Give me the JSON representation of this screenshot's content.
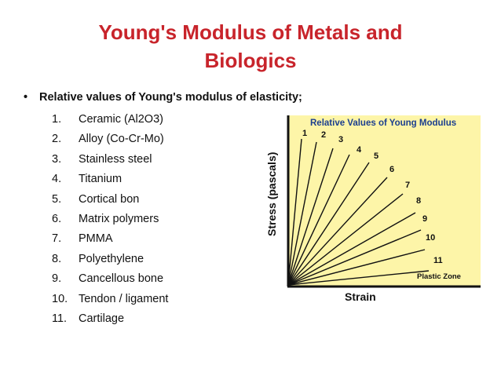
{
  "slide": {
    "title_line1": "Young's Modulus of Metals and",
    "title_line2": "Biologics",
    "bullet_symbol": "•",
    "bullet_text": "Relative values of Young's modulus of elasticity;",
    "items": [
      {
        "num": "1.",
        "label": "Ceramic (Al2O3)"
      },
      {
        "num": "2.",
        "label": "Alloy (Co-Cr-Mo)"
      },
      {
        "num": "3.",
        "label": "Stainless steel"
      },
      {
        "num": "4.",
        "label": "Titanium"
      },
      {
        "num": "5.",
        "label": "Cortical bon"
      },
      {
        "num": "6.",
        "label": "Matrix polymers"
      },
      {
        "num": "7.",
        "label": "PMMA"
      },
      {
        "num": "8.",
        "label": "Polyethylene"
      },
      {
        "num": "9.",
        "label": "Cancellous bone"
      },
      {
        "num": "10.",
        "label": "Tendon / ligament"
      },
      {
        "num": "11.",
        "label": "Cartilage"
      }
    ]
  },
  "figure": {
    "title": "Relative Values of Young Modulus",
    "xlabel": "Strain",
    "ylabel": "Stress (pascals)",
    "zone_label": "Plastic Zone",
    "line_labels": [
      "1",
      "2",
      "3",
      "4",
      "5",
      "6",
      "7",
      "8",
      "9",
      "10",
      "11"
    ],
    "colors": {
      "panel": "#fdf5a8",
      "title": "#1b3f8f",
      "lines": "#111111",
      "heading": "#c8242b"
    }
  }
}
